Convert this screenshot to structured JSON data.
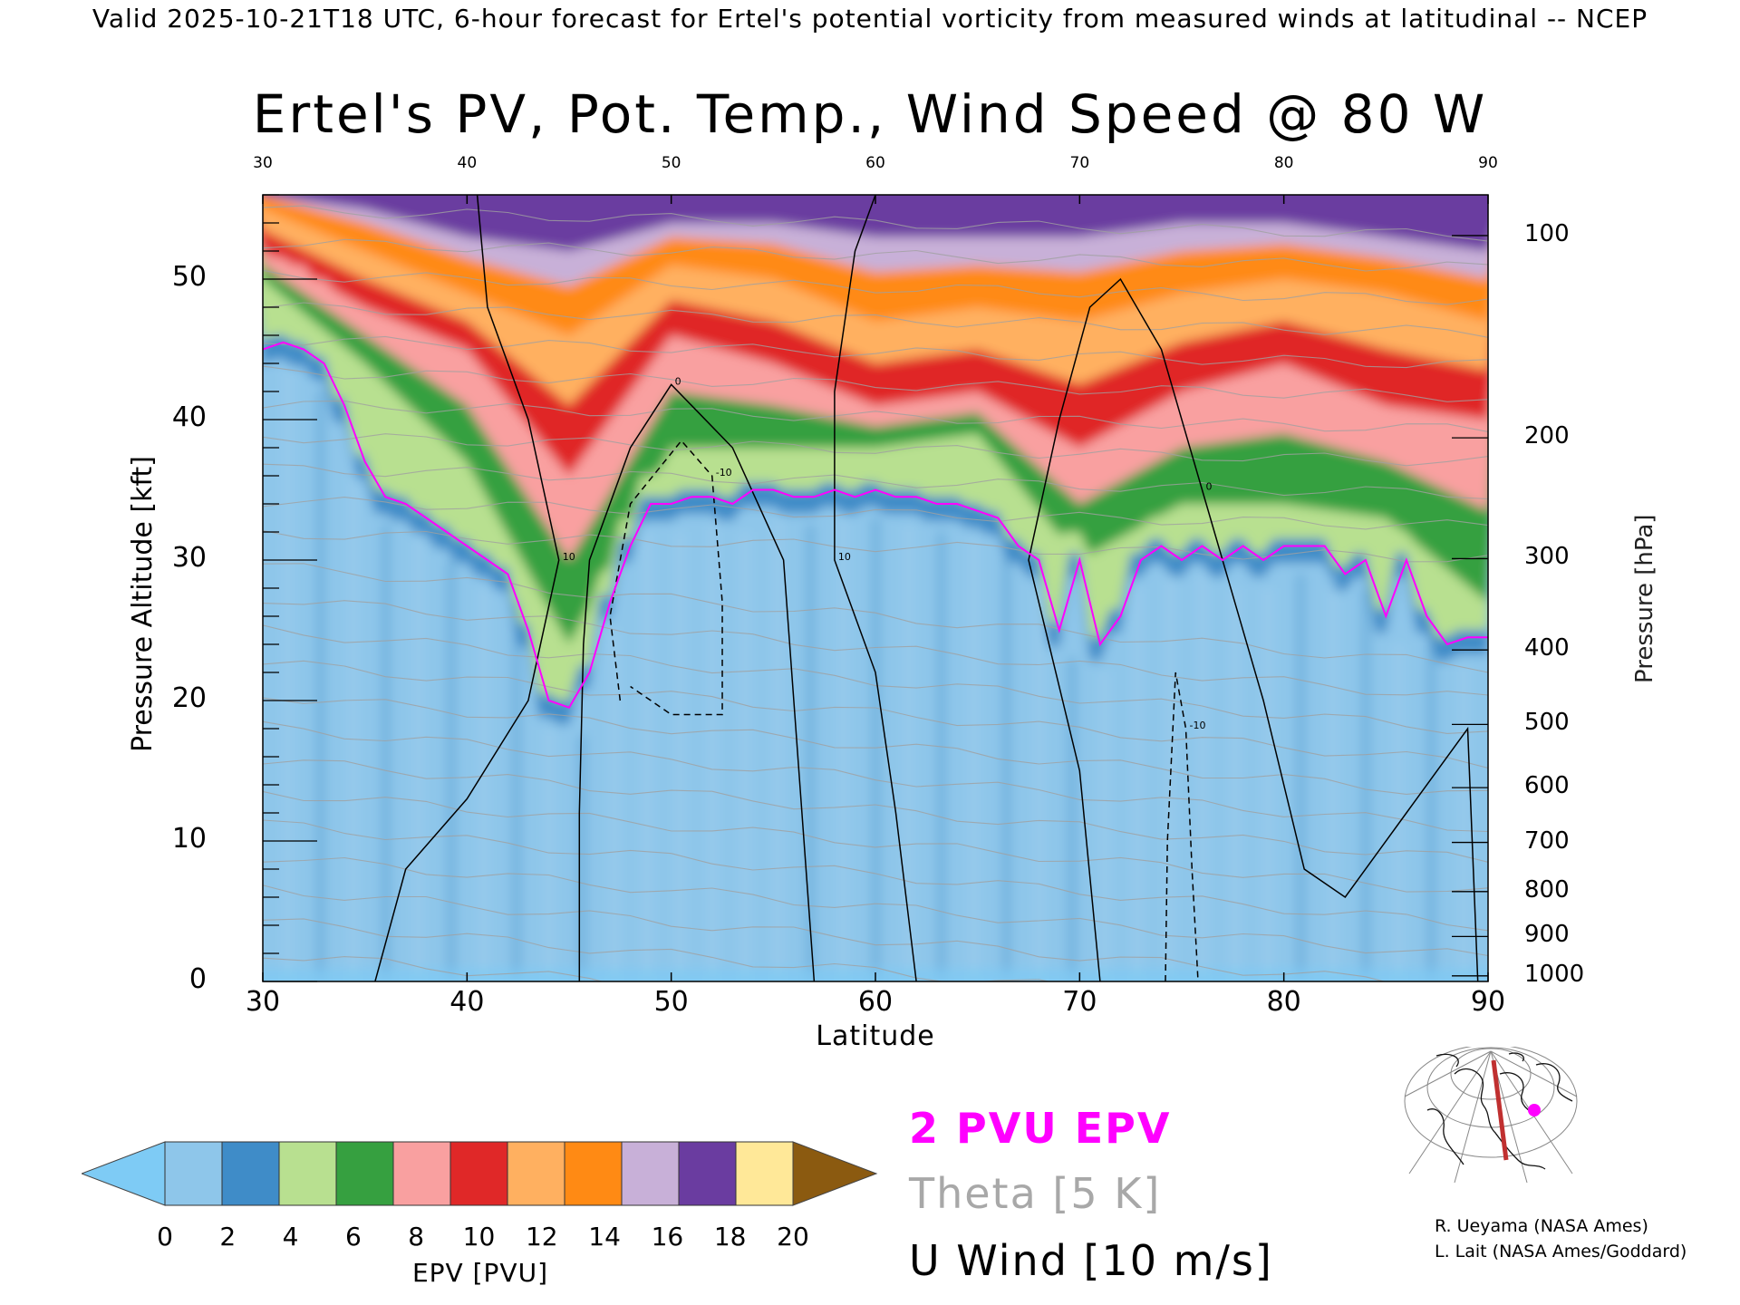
{
  "header": "Valid 2025-10-21T18 UTC, 6-hour forecast for Ertel's potential vorticity from measured winds at latitudinal -- NCEP",
  "chart_data": {
    "type": "heatmap",
    "title": "Ertel's PV, Pot. Temp., Wind Speed @ 80 W",
    "xlabel": "Latitude",
    "ylabel": "Pressure Altitude [kft]",
    "y2label": "Pressure [hPa]",
    "xlim": [
      30,
      90
    ],
    "ylim": [
      0,
      56
    ],
    "x_ticks": [
      "30",
      "40",
      "50",
      "60",
      "70",
      "80",
      "90"
    ],
    "top_ticks": [
      "30",
      "40",
      "50",
      "60",
      "70",
      "80",
      "90"
    ],
    "y_ticks": [
      "0",
      "10",
      "20",
      "30",
      "40",
      "50"
    ],
    "pressure_ticks": [
      {
        "label": "100",
        "kft": 53.1
      },
      {
        "label": "200",
        "kft": 38.7
      },
      {
        "label": "300",
        "kft": 30.1
      },
      {
        "label": "400",
        "kft": 23.6
      },
      {
        "label": "500",
        "kft": 18.3
      },
      {
        "label": "600",
        "kft": 13.8
      },
      {
        "label": "700",
        "kft": 9.9
      },
      {
        "label": "800",
        "kft": 6.4
      },
      {
        "label": "900",
        "kft": 3.2
      },
      {
        "label": "1000",
        "kft": 0.4
      }
    ],
    "colorbar": {
      "label": "EPV [PVU]",
      "ticks": [
        "0",
        "2",
        "4",
        "6",
        "8",
        "10",
        "12",
        "14",
        "16",
        "18",
        "20"
      ],
      "under_color": "#7ecbf5",
      "over_color": "#8b5a10",
      "colors": [
        "#8ec6ea",
        "#3f8cc8",
        "#b8e090",
        "#36a040",
        "#f9a0a0",
        "#e02828",
        "#ffb060",
        "#ff8a14",
        "#c8b0d8",
        "#6a3ca0",
        "#ffe898"
      ]
    },
    "two_pvu_boundary": {
      "lat": [
        30,
        31,
        32,
        33,
        34,
        35,
        36,
        37,
        38,
        39,
        40,
        41,
        42,
        43,
        44,
        45,
        46,
        47,
        48,
        49,
        50,
        51,
        52,
        53,
        54,
        55,
        56,
        57,
        58,
        59,
        60,
        61,
        62,
        63,
        64,
        65,
        66,
        67,
        68,
        69,
        70,
        71,
        72,
        73,
        74,
        75,
        76,
        77,
        78,
        79,
        80,
        81,
        82,
        83,
        84,
        85,
        86,
        87,
        88,
        89,
        90
      ],
      "kft": [
        45,
        45.5,
        45,
        44,
        41,
        37,
        34.5,
        34,
        33,
        32,
        31,
        30,
        29,
        25,
        20,
        19.5,
        22,
        27,
        31,
        34,
        34,
        34.5,
        34.5,
        34,
        35,
        35,
        34.5,
        34.5,
        35,
        34.5,
        35,
        34.5,
        34.5,
        34,
        34,
        33.5,
        33,
        31,
        30,
        25,
        30,
        24,
        26,
        30,
        31,
        30,
        31,
        30,
        31,
        30,
        31,
        31,
        31,
        29,
        30,
        26,
        30,
        26,
        24,
        24.5,
        24.5
      ]
    },
    "epv_levels_kft_by_lat": {
      "lat": [
        30,
        35,
        40,
        45,
        50,
        55,
        60,
        65,
        70,
        75,
        80,
        85,
        90
      ],
      "pvu4": [
        50,
        44,
        37,
        24,
        38,
        38,
        38,
        39,
        30,
        34,
        34,
        33,
        27
      ],
      "pvu8": [
        52,
        48,
        45,
        36,
        46,
        44,
        41,
        42,
        38,
        42,
        44,
        41,
        40
      ],
      "pvu12": [
        55,
        52,
        49,
        46,
        51,
        50,
        47,
        48,
        47,
        49,
        50,
        49,
        47
      ],
      "pvu16": [
        56,
        55,
        53,
        52,
        54,
        54,
        53,
        53,
        53,
        54,
        54,
        53,
        52
      ]
    },
    "u_wind_contours": [
      {
        "label": "10",
        "points": [
          [
            35.5,
            0
          ],
          [
            37,
            8
          ],
          [
            40,
            13
          ],
          [
            43,
            20
          ],
          [
            44.5,
            30
          ],
          [
            43,
            40
          ],
          [
            41,
            48
          ],
          [
            40.5,
            56
          ]
        ]
      },
      {
        "label": "0",
        "points": [
          [
            45.5,
            0
          ],
          [
            45.5,
            12
          ],
          [
            45.7,
            24
          ],
          [
            46,
            30
          ],
          [
            48,
            38
          ],
          [
            50,
            42.5
          ],
          [
            53,
            38
          ],
          [
            55.5,
            30
          ],
          [
            56,
            20
          ],
          [
            57,
            0
          ]
        ]
      },
      {
        "label": "-10",
        "dashed": true,
        "points": [
          [
            47.5,
            20
          ],
          [
            47,
            26
          ],
          [
            48,
            34
          ],
          [
            50.5,
            38.5
          ],
          [
            52,
            36
          ],
          [
            52.5,
            27
          ],
          [
            52.5,
            19
          ],
          [
            50,
            19
          ],
          [
            48,
            21
          ]
        ]
      },
      {
        "label": "10",
        "points": [
          [
            62,
            0
          ],
          [
            61,
            12
          ],
          [
            60,
            22
          ],
          [
            58,
            30
          ],
          [
            58,
            42
          ],
          [
            59,
            52
          ],
          [
            60,
            56
          ]
        ]
      },
      {
        "label": "0",
        "points": [
          [
            71,
            0
          ],
          [
            70,
            15
          ],
          [
            67.5,
            30
          ],
          [
            69,
            40
          ],
          [
            70.5,
            48
          ],
          [
            72,
            50
          ],
          [
            74,
            45
          ],
          [
            76,
            35
          ],
          [
            79,
            20
          ],
          [
            81,
            8
          ],
          [
            83,
            6
          ],
          [
            86,
            12
          ],
          [
            89,
            18
          ],
          [
            89.5,
            0
          ]
        ]
      },
      {
        "label": "-10",
        "dashed": true,
        "points": [
          [
            74.2,
            0
          ],
          [
            74.3,
            10
          ],
          [
            74.7,
            22
          ],
          [
            75.2,
            18
          ],
          [
            75.5,
            8
          ],
          [
            75.8,
            0
          ]
        ]
      }
    ]
  },
  "legend": {
    "pv_label": "2 PVU EPV",
    "theta_label": "Theta [5 K]",
    "wind_label": "U Wind [10 m/s]"
  },
  "credits": {
    "line1": "R. Ueyama (NASA Ames)",
    "line2": "L. Lait (NASA Ames/Goddard)"
  },
  "map": {
    "section_color": "#c03030",
    "marker_color": "#ff00ff"
  }
}
